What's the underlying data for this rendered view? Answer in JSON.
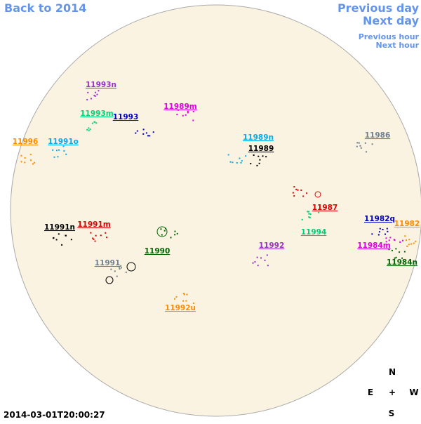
{
  "navigation": {
    "back": "Back to 2014",
    "previous_day": "Previous day",
    "next_day": "Next day",
    "previous_hour": "Previous hour",
    "next_hour": "Next hour"
  },
  "regions": [
    {
      "label": "11993n",
      "color": "#9932cc"
    },
    {
      "label": "11989m",
      "color": "#e000e0"
    },
    {
      "label": "11993m",
      "color": "#00d47a"
    },
    {
      "label": "11993",
      "color": "#0000c0"
    },
    {
      "label": "11996",
      "color": "#ff8c00"
    },
    {
      "label": "11991o",
      "color": "#00aeef"
    },
    {
      "label": "11989n",
      "color": "#00aeef"
    },
    {
      "label": "11986",
      "color": "#708090"
    },
    {
      "label": "11989",
      "color": "#000000"
    },
    {
      "label": "11987",
      "color": "#e00000"
    },
    {
      "label": "11982q",
      "color": "#0000c0"
    },
    {
      "label": "11982",
      "color": "#ff8c00"
    },
    {
      "label": "11991n",
      "color": "#000000"
    },
    {
      "label": "11991m",
      "color": "#e00000"
    },
    {
      "label": "11994",
      "color": "#00cc77"
    },
    {
      "label": "11992",
      "color": "#9932cc"
    },
    {
      "label": "11990",
      "color": "#006400"
    },
    {
      "label": "11984m",
      "color": "#e000e0"
    },
    {
      "label": "11984n",
      "color": "#006400"
    },
    {
      "label": "11991",
      "color": "#708090"
    },
    {
      "label": "11992u",
      "color": "#ff8c00"
    }
  ],
  "timestamp": "2014-03-01T20:00:27",
  "compass": {
    "north": "N",
    "south": "S",
    "east": "E",
    "west": "W",
    "center": "+"
  }
}
